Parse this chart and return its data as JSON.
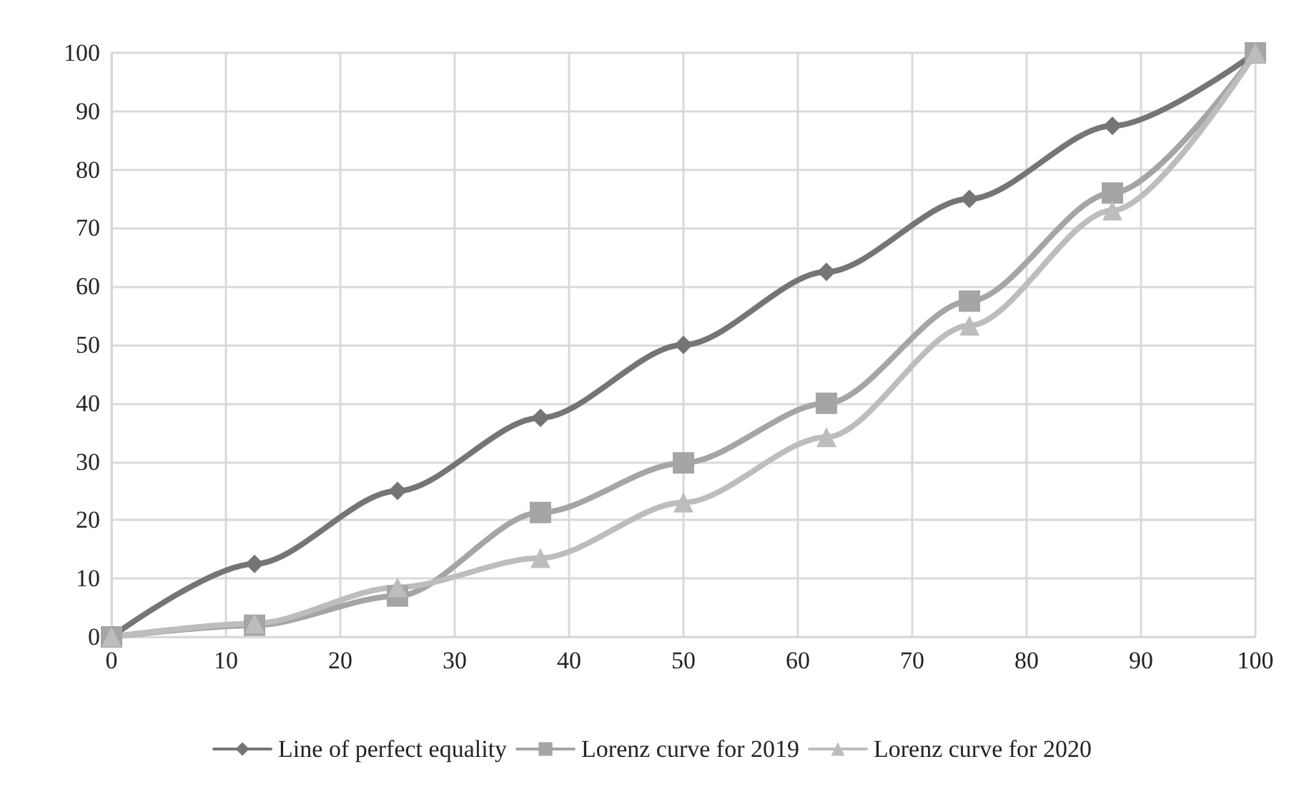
{
  "chart_data": {
    "type": "line",
    "x": [
      0,
      12.5,
      25,
      37.5,
      50,
      62.5,
      75,
      87.5,
      100
    ],
    "series": [
      {
        "name": "Line of perfect equality",
        "color": "#757575",
        "marker": "diamond",
        "values": [
          0,
          12.5,
          25,
          37.5,
          50,
          62.5,
          75,
          87.5,
          100
        ]
      },
      {
        "name": "Lorenz curve for 2019",
        "color": "#a5a5a5",
        "marker": "square",
        "values": [
          0,
          2,
          7,
          21.3,
          29.8,
          40,
          57.5,
          76,
          100
        ]
      },
      {
        "name": "Lorenz curve for 2020",
        "color": "#bdbdbd",
        "marker": "triangle",
        "values": [
          0,
          2.3,
          8.5,
          13.5,
          23,
          34.2,
          53.3,
          73,
          100
        ]
      }
    ],
    "xlim": [
      0,
      100
    ],
    "xticks": [
      0,
      10,
      20,
      30,
      40,
      50,
      60,
      70,
      80,
      90,
      100
    ],
    "ylim": [
      0,
      100
    ],
    "yticks": [
      0,
      10,
      20,
      30,
      40,
      50,
      60,
      70,
      80,
      90,
      100
    ],
    "grid": true,
    "legend": "bottom"
  }
}
